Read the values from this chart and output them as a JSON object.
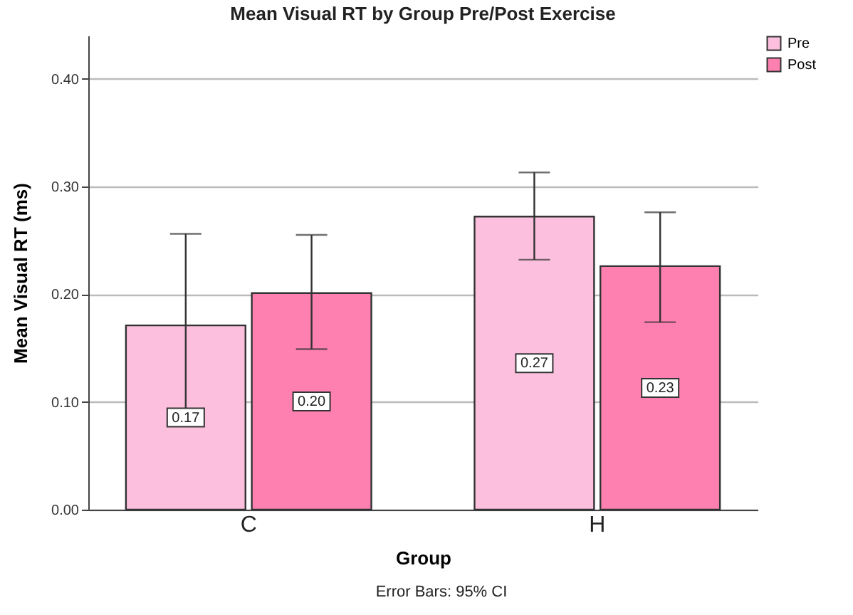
{
  "chart_data": {
    "type": "bar",
    "title": "Mean Visual RT by Group Pre/Post Exercise",
    "xlabel": "Group",
    "ylabel": "Mean Visual RT (ms)",
    "annotations": [
      "Error Bars: 95% CI"
    ],
    "categories": [
      "C",
      "H"
    ],
    "series": [
      {
        "name": "Pre",
        "color": "#fcc0de",
        "values": [
          0.171,
          0.272
        ],
        "errors": [
          [
            0.086,
            0.256
          ],
          [
            0.232,
            0.313
          ]
        ],
        "value_labels": [
          "0.17",
          "0.27"
        ]
      },
      {
        "name": "Post",
        "color": "#fd80b0",
        "values": [
          0.201,
          0.226
        ],
        "errors": [
          [
            0.149,
            0.255
          ],
          [
            0.174,
            0.276
          ]
        ],
        "value_labels": [
          "0.20",
          "0.23"
        ]
      }
    ],
    "ylim": [
      0,
      0.44
    ],
    "yticks": [
      {
        "value": 0,
        "label": "0.00"
      },
      {
        "value": 0.1,
        "label": "0.10"
      },
      {
        "value": 0.2,
        "label": "0.20"
      },
      {
        "value": 0.3,
        "label": "0.30"
      },
      {
        "value": 0.4,
        "label": "0.40"
      }
    ],
    "grid": "y",
    "legend": "top right"
  }
}
